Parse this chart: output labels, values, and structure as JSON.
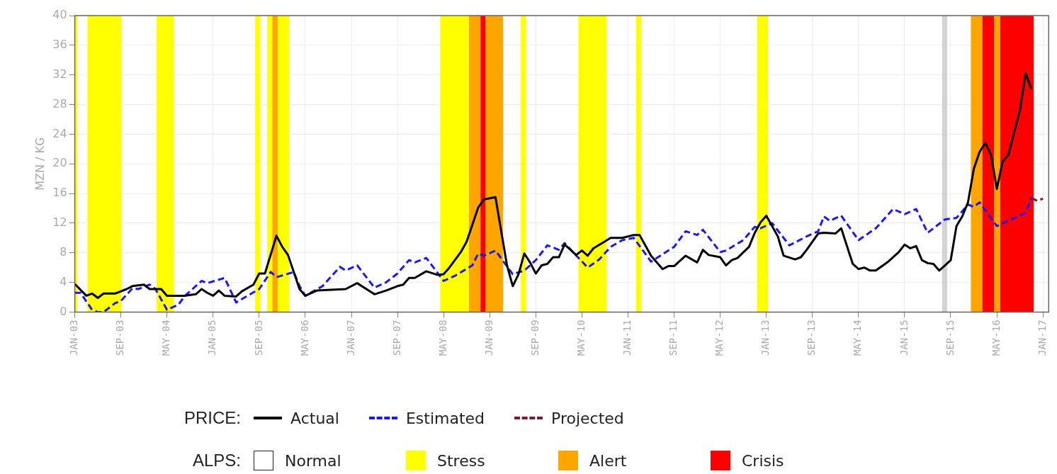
{
  "chart_data": {
    "type": "line",
    "ylabel": "MZN / KG",
    "legend_title": "PRICE:",
    "legend": "bottom",
    "grid": true,
    "marker": "none",
    "xlim": [
      "2003-01",
      "2017-02"
    ],
    "xticks": [
      {
        "value": "2003-01",
        "label": "JAN-03"
      },
      {
        "value": "2003-09",
        "label": "SEP-03"
      },
      {
        "value": "2004-05",
        "label": "MAY-04"
      },
      {
        "value": "2005-01",
        "label": "JAN-05"
      },
      {
        "value": "2005-09",
        "label": "SEP-05"
      },
      {
        "value": "2006-05",
        "label": "MAY-06"
      },
      {
        "value": "2007-01",
        "label": "JAN-07"
      },
      {
        "value": "2007-09",
        "label": "SEP-07"
      },
      {
        "value": "2008-05",
        "label": "MAY-08"
      },
      {
        "value": "2009-01",
        "label": "JAN-09"
      },
      {
        "value": "2009-09",
        "label": "SEP-09"
      },
      {
        "value": "2010-05",
        "label": "MAY-10"
      },
      {
        "value": "2011-01",
        "label": "JAN-11"
      },
      {
        "value": "2011-09",
        "label": "SEP-11"
      },
      {
        "value": "2012-05",
        "label": "MAY-12"
      },
      {
        "value": "2013-01",
        "label": "JAN-13"
      },
      {
        "value": "2013-09",
        "label": "SEP-13"
      },
      {
        "value": "2014-05",
        "label": "MAY-14"
      },
      {
        "value": "2015-01",
        "label": "JAN-15"
      },
      {
        "value": "2015-09",
        "label": "SEP-15"
      },
      {
        "value": "2016-05",
        "label": "MAY-16"
      },
      {
        "value": "2017-01",
        "label": "JAN-17"
      }
    ],
    "ylim": [
      0,
      40
    ],
    "yticks": [
      0,
      4,
      8,
      12,
      16,
      20,
      24,
      28,
      32,
      36,
      40
    ],
    "series": [
      {
        "name": "Actual",
        "color": "#000000",
        "line_style": "solid",
        "x": [
          "2003-01",
          "2003-03",
          "2003-04",
          "2003-05",
          "2003-06",
          "2003-08",
          "2003-10",
          "2003-11",
          "2004-01",
          "2004-02",
          "2004-04",
          "2004-05",
          "2004-08",
          "2004-10",
          "2004-11",
          "2004-12",
          "2005-01",
          "2005-02",
          "2005-03",
          "2005-05",
          "2005-06",
          "2005-08",
          "2005-09",
          "2005-10",
          "2005-12",
          "2006-01",
          "2006-02",
          "2006-04",
          "2006-05",
          "2006-07",
          "2006-12",
          "2007-02",
          "2007-04",
          "2007-05",
          "2007-07",
          "2007-09",
          "2007-10",
          "2007-11",
          "2007-12",
          "2008-02",
          "2008-04",
          "2008-05",
          "2008-06",
          "2008-08",
          "2008-09",
          "2008-11",
          "2008-12",
          "2009-02",
          "2009-04",
          "2009-05",
          "2009-06",
          "2009-07",
          "2009-08",
          "2009-09",
          "2009-10",
          "2009-11",
          "2009-12",
          "2010-01",
          "2010-02",
          "2010-04",
          "2010-05",
          "2010-06",
          "2010-07",
          "2010-10",
          "2010-12",
          "2011-02",
          "2011-03",
          "2011-05",
          "2011-07",
          "2011-08",
          "2011-09",
          "2011-11",
          "2012-01",
          "2012-02",
          "2012-03",
          "2012-05",
          "2012-06",
          "2012-07",
          "2012-08",
          "2012-10",
          "2012-11",
          "2012-12",
          "2013-01",
          "2013-03",
          "2013-04",
          "2013-06",
          "2013-07",
          "2013-08",
          "2013-10",
          "2013-11",
          "2014-01",
          "2014-02",
          "2014-04",
          "2014-05",
          "2014-06",
          "2014-07",
          "2014-08",
          "2014-10",
          "2014-12",
          "2015-01",
          "2015-02",
          "2015-03",
          "2015-04",
          "2015-05",
          "2015-06",
          "2015-07",
          "2015-08",
          "2015-09",
          "2015-10",
          "2015-11",
          "2015-12",
          "2016-01",
          "2016-02",
          "2016-03",
          "2016-04",
          "2016-05",
          "2016-06",
          "2016-07",
          "2016-09",
          "2016-10",
          "2016-11"
        ],
        "values": [
          3.8,
          2.2,
          2.5,
          1.9,
          2.5,
          2.5,
          3.1,
          3.5,
          3.7,
          3.1,
          3.1,
          2.2,
          2.2,
          2.4,
          3.1,
          2.6,
          2.2,
          2.9,
          2.2,
          2.1,
          2.8,
          3.7,
          5.2,
          5.2,
          10.3,
          8.8,
          7.7,
          3.1,
          2.2,
          2.9,
          3.1,
          3.9,
          2.9,
          2.4,
          2.9,
          3.5,
          3.7,
          4.6,
          4.6,
          5.5,
          5.0,
          5.1,
          6.0,
          8.1,
          9.5,
          14.1,
          15.2,
          15.5,
          6.3,
          3.5,
          5.1,
          7.9,
          6.7,
          5.2,
          6.3,
          6.5,
          7.4,
          7.4,
          9.1,
          7.7,
          8.3,
          7.6,
          8.6,
          10,
          10,
          10.4,
          10.4,
          7.6,
          5.8,
          6.2,
          6.2,
          7.6,
          6.7,
          8.4,
          7.7,
          7.4,
          6.3,
          7.0,
          7.3,
          8.8,
          10.7,
          12.1,
          13.0,
          10.2,
          7.6,
          7.1,
          7.4,
          8.4,
          10.6,
          10.7,
          10.6,
          11.3,
          6.5,
          5.8,
          6.0,
          5.6,
          5.6,
          6.7,
          8.1,
          9.1,
          8.6,
          8.9,
          7.0,
          6.6,
          6.5,
          5.6,
          6.3,
          7.0,
          11.6,
          12.9,
          14.8,
          19.3,
          21.6,
          22.8,
          21.2,
          16.6,
          20.3,
          21.2,
          27.2,
          32.2,
          30.1
        ]
      },
      {
        "name": "Estimated",
        "color": "#1a1aee",
        "line_style": "dashed",
        "x": [
          "2003-01",
          "2003-02",
          "2003-04",
          "2003-05",
          "2003-06",
          "2003-08",
          "2003-09",
          "2003-11",
          "2003-12",
          "2004-02",
          "2004-03",
          "2004-05",
          "2004-07",
          "2004-08",
          "2004-11",
          "2004-12",
          "2005-03",
          "2005-05",
          "2005-07",
          "2005-09",
          "2005-11",
          "2005-12",
          "2006-03",
          "2006-04",
          "2006-05",
          "2006-08",
          "2006-11",
          "2006-12",
          "2007-02",
          "2007-05",
          "2007-07",
          "2007-09",
          "2007-11",
          "2007-12",
          "2008-02",
          "2008-05",
          "2008-07",
          "2008-10",
          "2008-11",
          "2008-12",
          "2009-02",
          "2009-05",
          "2009-07",
          "2009-09",
          "2009-11",
          "2010-01",
          "2010-02",
          "2010-06",
          "2010-08",
          "2010-10",
          "2010-12",
          "2011-02",
          "2011-05",
          "2011-09",
          "2011-11",
          "2012-01",
          "2012-02",
          "2012-05",
          "2012-06",
          "2012-09",
          "2012-11",
          "2012-12",
          "2013-02",
          "2013-05",
          "2013-08",
          "2013-10",
          "2013-11",
          "2013-12",
          "2014-02",
          "2014-05",
          "2014-08",
          "2014-11",
          "2015-01",
          "2015-03",
          "2015-05",
          "2015-08",
          "2015-10",
          "2015-12",
          "2016-01",
          "2016-02",
          "2016-05",
          "2016-10",
          "2016-11"
        ],
        "values": [
          2.6,
          2.6,
          0.3,
          0,
          0,
          1.2,
          1.5,
          3.2,
          3.1,
          3.7,
          3.1,
          0.3,
          1.0,
          2.1,
          4.2,
          3.9,
          4.6,
          1.3,
          2.2,
          3.1,
          5.4,
          4.7,
          5.4,
          3.5,
          2.2,
          3.5,
          6.1,
          5.6,
          6.3,
          3.3,
          4.0,
          5.2,
          7.0,
          6.7,
          7.3,
          4.2,
          4.9,
          6.3,
          7.9,
          7.6,
          8.3,
          5.1,
          5.6,
          7.0,
          9.0,
          8.4,
          9.3,
          6.0,
          7.1,
          8.8,
          9.7,
          10.0,
          6.8,
          8.8,
          10.9,
          10.4,
          11.1,
          8.1,
          8.3,
          9.7,
          11.5,
          11.3,
          12.0,
          9.0,
          10.2,
          10.9,
          12.9,
          12.3,
          13.0,
          9.7,
          11.3,
          13.9,
          13.2,
          13.9,
          10.7,
          12.5,
          12.7,
          14.5,
          14.2,
          14.8,
          11.6,
          13.4,
          15.4
        ]
      },
      {
        "name": "Projected",
        "color": "#7b1c2c",
        "line_style": "dashed",
        "x": [
          "2016-11",
          "2016-12",
          "2017-01"
        ],
        "values": [
          15.4,
          15.0,
          15.3
        ]
      }
    ],
    "bands": [
      {
        "axis": "x",
        "from": "2003-01-02",
        "to": "2003-01-14",
        "color": "#ffff00"
      },
      {
        "axis": "x",
        "from": "2003-03-07",
        "to": "2003-09-04",
        "label": "Stress",
        "color": "#ffff00"
      },
      {
        "axis": "x",
        "from": "2004-03-07",
        "to": "2004-06-07",
        "color": "#ffff00"
      },
      {
        "axis": "x",
        "from": "2005-08-10",
        "to": "2005-09-07",
        "color": "#ffff00"
      },
      {
        "axis": "x",
        "from": "2005-10-13",
        "to": "2006-02-07",
        "color": "#ffff00"
      },
      {
        "axis": "x",
        "from": "2005-11-10",
        "to": "2005-12-07",
        "label": "Alert",
        "color": "#ffa500"
      },
      {
        "axis": "x",
        "from": "2008-04-13",
        "to": "2008-09-13",
        "color": "#ffff00"
      },
      {
        "axis": "x",
        "from": "2008-09-13",
        "to": "2008-11-13",
        "color": "#ffa500"
      },
      {
        "axis": "x",
        "from": "2008-11-13",
        "to": "2008-12-10",
        "label": "Crisis",
        "color": "#ff0000"
      },
      {
        "axis": "x",
        "from": "2008-12-10",
        "to": "2009-03-10",
        "color": "#ffa500"
      },
      {
        "axis": "x",
        "from": "2009-06-13",
        "to": "2009-07-10",
        "color": "#ffff00"
      },
      {
        "axis": "x",
        "from": "2010-04-13",
        "to": "2010-09-10",
        "color": "#ffff00"
      },
      {
        "axis": "x",
        "from": "2011-02-13",
        "to": "2011-03-10",
        "color": "#ffff00"
      },
      {
        "axis": "x",
        "from": "2012-11-13",
        "to": "2013-01-10",
        "color": "#ffff00"
      },
      {
        "axis": "x",
        "from": "2015-07-16",
        "to": "2015-08-13",
        "color": "#d3d3d3"
      },
      {
        "axis": "x",
        "from": "2015-12-16",
        "to": "2016-02-16",
        "color": "#ffa500"
      },
      {
        "axis": "x",
        "from": "2016-02-16",
        "to": "2016-04-16",
        "color": "#ff0000"
      },
      {
        "axis": "x",
        "from": "2016-04-16",
        "to": "2016-05-19",
        "color": "#ffa500"
      },
      {
        "axis": "x",
        "from": "2016-05-19",
        "to": "2016-11-13",
        "color": "#ff0000"
      }
    ],
    "annotations": [
      "ALPS:",
      "Normal"
    ]
  }
}
